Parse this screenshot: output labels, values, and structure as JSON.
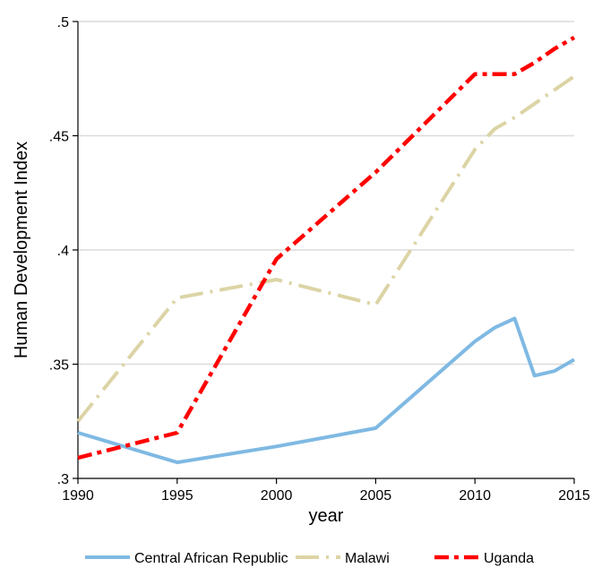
{
  "chart_data": {
    "type": "line",
    "title": "",
    "xlabel": "year",
    "ylabel": "Human Development Index",
    "xlim": [
      1990,
      2015
    ],
    "ylim": [
      0.3,
      0.5
    ],
    "x_ticks": [
      1990,
      1995,
      2000,
      2005,
      2010,
      2015
    ],
    "x_tick_labels": [
      "1990",
      "1995",
      "2000",
      "2005",
      "2010",
      "2015"
    ],
    "y_ticks": [
      0.3,
      0.35,
      0.4,
      0.45,
      0.5
    ],
    "y_tick_labels": [
      ".3",
      ".35",
      ".4",
      ".45",
      ".5"
    ],
    "grid": "horizontal",
    "legend_position": "bottom",
    "series": [
      {
        "name": "Central African Republic",
        "color": "#7fb9e3",
        "style": "solid",
        "points": [
          [
            1990,
            0.32
          ],
          [
            1995,
            0.307
          ],
          [
            2000,
            0.314
          ],
          [
            2005,
            0.322
          ],
          [
            2010,
            0.36
          ],
          [
            2011,
            0.366
          ],
          [
            2012,
            0.37
          ],
          [
            2013,
            0.345
          ],
          [
            2014,
            0.347
          ],
          [
            2015,
            0.352
          ]
        ]
      },
      {
        "name": "Malawi",
        "color": "#dcd4a5",
        "style": "longdash-dot",
        "points": [
          [
            1990,
            0.325
          ],
          [
            1995,
            0.379
          ],
          [
            2000,
            0.387
          ],
          [
            2005,
            0.376
          ],
          [
            2010,
            0.444
          ],
          [
            2011,
            0.453
          ],
          [
            2012,
            0.458
          ],
          [
            2013,
            0.464
          ],
          [
            2014,
            0.47
          ],
          [
            2015,
            0.476
          ]
        ]
      },
      {
        "name": "Uganda",
        "color": "#ff0000",
        "style": "dash-dot",
        "points": [
          [
            1990,
            0.309
          ],
          [
            1995,
            0.32
          ],
          [
            2000,
            0.396
          ],
          [
            2005,
            0.434
          ],
          [
            2010,
            0.477
          ],
          [
            2011,
            0.477
          ],
          [
            2012,
            0.477
          ],
          [
            2013,
            0.482
          ],
          [
            2014,
            0.488
          ],
          [
            2015,
            0.493
          ]
        ]
      }
    ]
  }
}
